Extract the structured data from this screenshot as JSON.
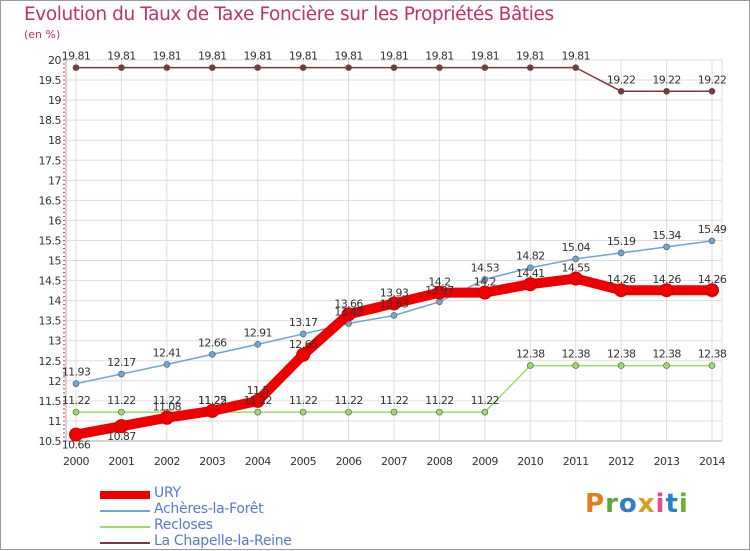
{
  "chart_data": {
    "type": "line",
    "title": "Evolution du Taux de Taxe Foncière sur les Propriétés Bâties",
    "ylabel": "(en %)",
    "x": [
      "2000",
      "2001",
      "2002",
      "2003",
      "2004",
      "2005",
      "2006",
      "2007",
      "2008",
      "2009",
      "2010",
      "2011",
      "2012",
      "2013",
      "2014"
    ],
    "ylim": [
      10.5,
      20
    ],
    "yticks": [
      "10.5",
      "11",
      "11.5",
      "12",
      "12.5",
      "13",
      "13.5",
      "14",
      "14.5",
      "15",
      "15.5",
      "16",
      "16.5",
      "17",
      "17.5",
      "18",
      "18.5",
      "19",
      "19.5",
      "20"
    ],
    "series": [
      {
        "name": "URY",
        "color": "#ee0000",
        "values": [
          10.66,
          10.87,
          11.08,
          11.25,
          11.5,
          12.65,
          13.66,
          13.93,
          14.2,
          14.2,
          14.41,
          14.55,
          14.26,
          14.26,
          14.26
        ],
        "labels": [
          "10.66",
          "10.87",
          "11.08",
          "11.25",
          "11.5",
          "12.65",
          "13.66",
          "13.93",
          "14.2",
          "14.2",
          "14.41",
          "14.55",
          "14.26",
          "14.26",
          "14.26"
        ]
      },
      {
        "name": "Achères-la-Forêt",
        "color": "#6aa6d6",
        "values": [
          11.93,
          12.17,
          12.41,
          12.66,
          12.91,
          13.17,
          13.43,
          13.63,
          13.97,
          14.53,
          14.82,
          15.04,
          15.19,
          15.34,
          15.49
        ],
        "labels": [
          "11.93",
          "12.17",
          "12.41",
          "12.66",
          "12.91",
          "13.17",
          "13.43",
          "13.63",
          "13.97",
          "14.53",
          "14.82",
          "15.04",
          "15.19",
          "15.34",
          "15.49"
        ]
      },
      {
        "name": "Recloses",
        "color": "#99dd66",
        "values": [
          11.22,
          11.22,
          11.22,
          11.22,
          11.22,
          11.22,
          11.22,
          11.22,
          11.22,
          11.22,
          12.38,
          12.38,
          12.38,
          12.38,
          12.38
        ],
        "labels": [
          "11.22",
          "11.22",
          "11.22",
          "11.22",
          "11.22",
          "11.22",
          "11.22",
          "11.22",
          "11.22",
          "11.22",
          "12.38",
          "12.38",
          "12.38",
          "12.38",
          "12.38"
        ]
      },
      {
        "name": "La Chapelle-la-Reine",
        "color": "#7a3a3a",
        "values": [
          19.81,
          19.81,
          19.81,
          19.81,
          19.81,
          19.81,
          19.81,
          19.81,
          19.81,
          19.81,
          19.81,
          19.81,
          19.22,
          19.22,
          19.22
        ],
        "labels": [
          "19.81",
          "19.81",
          "19.81",
          "19.81",
          "19.81",
          "19.81",
          "19.81",
          "19.81",
          "19.81",
          "19.81",
          "19.81",
          "19.81",
          "19.22",
          "19.22",
          "19.22"
        ]
      }
    ]
  },
  "brand": {
    "letters": [
      "P",
      "r",
      "o",
      "x",
      "i",
      "t",
      "i"
    ],
    "colors": [
      "#e87a1e",
      "#5aaa3a",
      "#2e7fc4",
      "#d4a020",
      "#e84a8a",
      "#2e7fc4",
      "#6ab02e"
    ]
  }
}
